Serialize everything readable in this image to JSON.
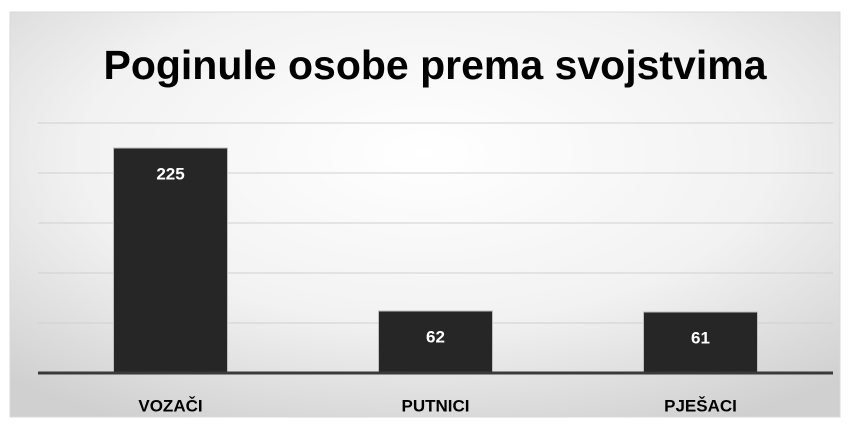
{
  "chart_data": {
    "type": "bar",
    "title": "Poginule osobe prema svojstvima",
    "categories": [
      "VOZAČI",
      "PUTNICI",
      "PJEŠACI"
    ],
    "values": [
      225,
      62,
      61
    ],
    "color": "#262626",
    "ylim": [
      0,
      250
    ],
    "yticks": [
      0,
      50,
      100,
      150,
      200,
      250
    ],
    "grid": true
  }
}
